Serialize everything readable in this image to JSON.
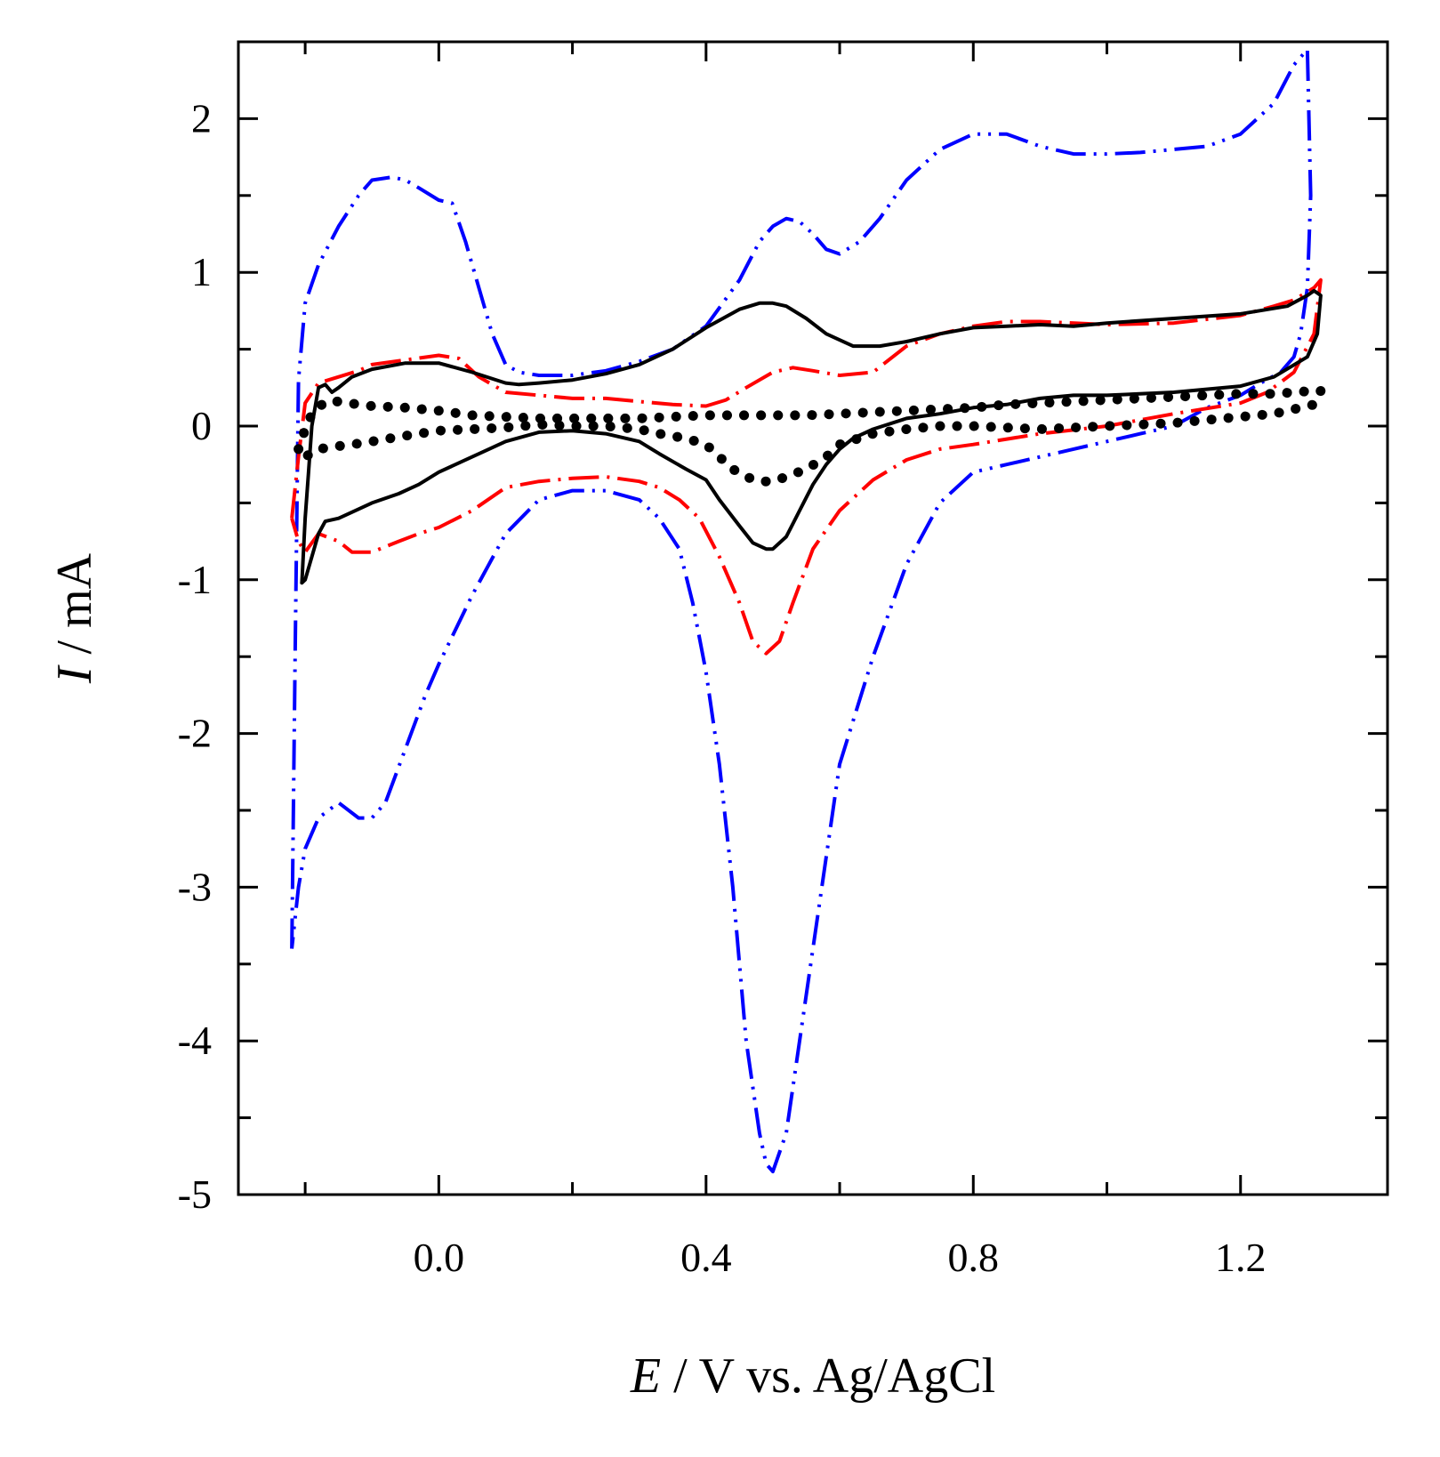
{
  "chart_data": {
    "type": "line",
    "title": "",
    "xlabel": {
      "italic": "E",
      "rest": " / V vs. Ag/AgCl"
    },
    "ylabel": {
      "italic": "I",
      "rest": " / mA"
    },
    "xlim": [
      -0.3,
      1.42
    ],
    "ylim": [
      -5,
      2.5
    ],
    "x_major_ticks": [
      0.0,
      0.4,
      0.8,
      1.2
    ],
    "x_tick_labels": [
      "0.0",
      "0.4",
      "0.8",
      "1.2"
    ],
    "x_minor_ticks": [
      -0.2,
      0.2,
      0.6,
      1.0
    ],
    "y_major_ticks": [
      2,
      1,
      0,
      -1,
      -2,
      -3,
      -4,
      -5
    ],
    "y_tick_labels": [
      "2",
      "1",
      "0",
      "-1",
      "-2",
      "-3",
      "-4",
      "-5"
    ],
    "y_minor_ticks": [
      1.5,
      0.5,
      -0.5,
      -1.5,
      -2.5,
      -3.5,
      -4.5
    ],
    "grid": false,
    "series": [
      {
        "name": "blue dash-dot-dot",
        "color": "#0000ff",
        "style": "dash-dot-dot",
        "x": [
          -0.22,
          -0.215,
          -0.21,
          -0.2,
          -0.18,
          -0.15,
          -0.12,
          -0.1,
          -0.07,
          -0.05,
          -0.03,
          0.0,
          0.02,
          0.04,
          0.06,
          0.08,
          0.1,
          0.12,
          0.15,
          0.2,
          0.25,
          0.3,
          0.35,
          0.4,
          0.45,
          0.48,
          0.5,
          0.52,
          0.54,
          0.56,
          0.58,
          0.6,
          0.63,
          0.66,
          0.7,
          0.75,
          0.8,
          0.85,
          0.9,
          0.95,
          1.0,
          1.05,
          1.1,
          1.15,
          1.2,
          1.25,
          1.28,
          1.3,
          1.305,
          1.3,
          1.29,
          1.28,
          1.26,
          1.23,
          1.2,
          1.15,
          1.1,
          1.05,
          1.0,
          0.95,
          0.9,
          0.85,
          0.8,
          0.75,
          0.7,
          0.65,
          0.6,
          0.58,
          0.56,
          0.54,
          0.52,
          0.5,
          0.49,
          0.48,
          0.46,
          0.44,
          0.42,
          0.4,
          0.38,
          0.36,
          0.33,
          0.3,
          0.25,
          0.2,
          0.15,
          0.1,
          0.05,
          0.0,
          -0.02,
          -0.05,
          -0.08,
          -0.1,
          -0.12,
          -0.15,
          -0.18,
          -0.2,
          -0.21,
          -0.215,
          -0.22
        ],
        "y": [
          -3.4,
          -1.5,
          0.3,
          0.8,
          1.05,
          1.3,
          1.5,
          1.6,
          1.62,
          1.6,
          1.55,
          1.47,
          1.45,
          1.2,
          0.9,
          0.6,
          0.4,
          0.35,
          0.33,
          0.33,
          0.36,
          0.42,
          0.5,
          0.65,
          0.95,
          1.2,
          1.3,
          1.35,
          1.33,
          1.25,
          1.15,
          1.12,
          1.2,
          1.35,
          1.6,
          1.8,
          1.9,
          1.9,
          1.82,
          1.77,
          1.77,
          1.78,
          1.8,
          1.82,
          1.9,
          2.1,
          2.35,
          2.45,
          1.5,
          0.9,
          0.6,
          0.45,
          0.35,
          0.28,
          0.2,
          0.12,
          0.0,
          -0.05,
          -0.1,
          -0.15,
          -0.2,
          -0.25,
          -0.3,
          -0.5,
          -0.9,
          -1.5,
          -2.2,
          -2.8,
          -3.4,
          -4.0,
          -4.6,
          -4.85,
          -4.8,
          -4.6,
          -4.0,
          -3.0,
          -2.2,
          -1.6,
          -1.15,
          -0.8,
          -0.6,
          -0.48,
          -0.42,
          -0.42,
          -0.48,
          -0.7,
          -1.1,
          -1.55,
          -1.75,
          -2.1,
          -2.45,
          -2.55,
          -2.55,
          -2.45,
          -2.55,
          -2.75,
          -3.0,
          -3.2,
          -3.4
        ]
      },
      {
        "name": "red dash-dot",
        "color": "#ff0000",
        "style": "dash-dot",
        "x": [
          -0.22,
          -0.21,
          -0.2,
          -0.18,
          -0.15,
          -0.12,
          -0.1,
          -0.05,
          0.0,
          0.03,
          0.06,
          0.1,
          0.15,
          0.2,
          0.25,
          0.3,
          0.35,
          0.4,
          0.43,
          0.46,
          0.5,
          0.53,
          0.56,
          0.6,
          0.65,
          0.7,
          0.75,
          0.8,
          0.85,
          0.9,
          1.0,
          1.1,
          1.2,
          1.25,
          1.28,
          1.31,
          1.32,
          1.31,
          1.28,
          1.24,
          1.2,
          1.1,
          1.0,
          0.9,
          0.8,
          0.75,
          0.7,
          0.65,
          0.6,
          0.56,
          0.53,
          0.51,
          0.49,
          0.47,
          0.45,
          0.42,
          0.39,
          0.36,
          0.33,
          0.3,
          0.25,
          0.2,
          0.15,
          0.1,
          0.05,
          0.0,
          -0.03,
          -0.06,
          -0.1,
          -0.13,
          -0.15,
          -0.18,
          -0.2,
          -0.21,
          -0.22
        ],
        "y": [
          -0.6,
          -0.2,
          0.15,
          0.28,
          0.32,
          0.36,
          0.4,
          0.43,
          0.46,
          0.44,
          0.32,
          0.22,
          0.2,
          0.18,
          0.18,
          0.16,
          0.14,
          0.13,
          0.17,
          0.25,
          0.35,
          0.38,
          0.36,
          0.33,
          0.35,
          0.52,
          0.6,
          0.65,
          0.68,
          0.68,
          0.66,
          0.67,
          0.72,
          0.78,
          0.82,
          0.9,
          0.95,
          0.6,
          0.35,
          0.22,
          0.15,
          0.08,
          0.0,
          -0.05,
          -0.12,
          -0.15,
          -0.22,
          -0.35,
          -0.55,
          -0.8,
          -1.15,
          -1.4,
          -1.48,
          -1.4,
          -1.15,
          -0.85,
          -0.6,
          -0.48,
          -0.4,
          -0.36,
          -0.33,
          -0.34,
          -0.36,
          -0.4,
          -0.55,
          -0.66,
          -0.7,
          -0.75,
          -0.82,
          -0.82,
          -0.75,
          -0.7,
          -0.82,
          -0.75,
          -0.6
        ]
      },
      {
        "name": "black solid",
        "color": "#000000",
        "style": "solid",
        "x": [
          -0.205,
          -0.2,
          -0.195,
          -0.19,
          -0.18,
          -0.17,
          -0.16,
          -0.15,
          -0.13,
          -0.1,
          -0.05,
          0.0,
          0.05,
          0.1,
          0.12,
          0.15,
          0.2,
          0.25,
          0.3,
          0.35,
          0.4,
          0.45,
          0.48,
          0.5,
          0.52,
          0.55,
          0.58,
          0.62,
          0.66,
          0.7,
          0.75,
          0.8,
          0.85,
          0.9,
          0.95,
          1.0,
          1.1,
          1.2,
          1.27,
          1.3,
          1.31,
          1.32,
          1.315,
          1.3,
          1.25,
          1.2,
          1.1,
          1.0,
          0.95,
          0.9,
          0.85,
          0.8,
          0.75,
          0.7,
          0.65,
          0.62,
          0.6,
          0.58,
          0.56,
          0.54,
          0.52,
          0.5,
          0.49,
          0.47,
          0.45,
          0.42,
          0.4,
          0.37,
          0.33,
          0.3,
          0.25,
          0.2,
          0.15,
          0.1,
          0.05,
          0.0,
          -0.03,
          -0.06,
          -0.1,
          -0.13,
          -0.15,
          -0.17,
          -0.18,
          -0.19,
          -0.2,
          -0.205
        ],
        "y": [
          -1.02,
          -0.6,
          -0.3,
          0.0,
          0.25,
          0.27,
          0.22,
          0.25,
          0.32,
          0.37,
          0.41,
          0.41,
          0.35,
          0.28,
          0.27,
          0.28,
          0.3,
          0.34,
          0.4,
          0.5,
          0.64,
          0.76,
          0.8,
          0.8,
          0.78,
          0.7,
          0.6,
          0.52,
          0.52,
          0.55,
          0.6,
          0.64,
          0.65,
          0.66,
          0.65,
          0.67,
          0.7,
          0.73,
          0.78,
          0.85,
          0.88,
          0.85,
          0.6,
          0.45,
          0.32,
          0.26,
          0.22,
          0.2,
          0.2,
          0.18,
          0.14,
          0.12,
          0.08,
          0.05,
          -0.02,
          -0.08,
          -0.15,
          -0.25,
          -0.38,
          -0.55,
          -0.72,
          -0.8,
          -0.8,
          -0.76,
          -0.65,
          -0.48,
          -0.35,
          -0.28,
          -0.18,
          -0.1,
          -0.05,
          -0.03,
          -0.04,
          -0.1,
          -0.2,
          -0.3,
          -0.38,
          -0.44,
          -0.5,
          -0.56,
          -0.6,
          -0.62,
          -0.7,
          -0.85,
          -1.0,
          -1.02
        ]
      },
      {
        "name": "black dotted",
        "color": "#000000",
        "style": "dotted",
        "x": [
          -0.21,
          -0.2,
          -0.19,
          -0.17,
          -0.15,
          -0.12,
          -0.1,
          -0.05,
          0.0,
          0.05,
          0.1,
          0.15,
          0.2,
          0.25,
          0.3,
          0.35,
          0.4,
          0.45,
          0.5,
          0.55,
          0.6,
          0.65,
          0.7,
          0.75,
          0.8,
          0.85,
          0.9,
          0.95,
          1.0,
          1.05,
          1.1,
          1.15,
          1.2,
          1.25,
          1.28,
          1.31,
          1.32,
          1.31,
          1.28,
          1.25,
          1.2,
          1.15,
          1.1,
          1.05,
          1.0,
          0.95,
          0.9,
          0.85,
          0.8,
          0.75,
          0.7,
          0.65,
          0.6,
          0.58,
          0.55,
          0.52,
          0.5,
          0.48,
          0.46,
          0.44,
          0.42,
          0.4,
          0.37,
          0.33,
          0.3,
          0.25,
          0.2,
          0.15,
          0.1,
          0.05,
          0.0,
          -0.03,
          -0.06,
          -0.1,
          -0.13,
          -0.15,
          -0.18,
          -0.2,
          -0.21
        ],
        "y": [
          -0.15,
          -0.02,
          0.08,
          0.16,
          0.16,
          0.14,
          0.13,
          0.12,
          0.1,
          0.07,
          0.06,
          0.05,
          0.05,
          0.05,
          0.05,
          0.06,
          0.07,
          0.07,
          0.07,
          0.07,
          0.08,
          0.09,
          0.1,
          0.11,
          0.12,
          0.14,
          0.15,
          0.16,
          0.17,
          0.18,
          0.19,
          0.2,
          0.21,
          0.21,
          0.22,
          0.23,
          0.23,
          0.14,
          0.11,
          0.08,
          0.06,
          0.04,
          0.02,
          0.01,
          0.0,
          -0.01,
          -0.02,
          -0.01,
          0.0,
          0.0,
          -0.02,
          -0.05,
          -0.12,
          -0.2,
          -0.28,
          -0.33,
          -0.36,
          -0.36,
          -0.33,
          -0.28,
          -0.2,
          -0.12,
          -0.08,
          -0.05,
          -0.02,
          0.0,
          0.0,
          0.01,
          -0.01,
          -0.02,
          -0.03,
          -0.05,
          -0.07,
          -0.1,
          -0.12,
          -0.13,
          -0.15,
          -0.2,
          -0.15
        ]
      }
    ]
  }
}
